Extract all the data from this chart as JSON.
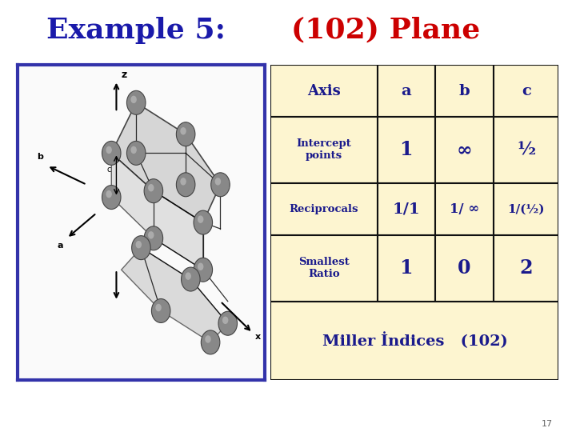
{
  "title_part1": "Example 5: ",
  "title_part2": "(102) Plane",
  "title_color1": "#1a1aaa",
  "title_color2": "#cc0000",
  "title_fontsize": 26,
  "bg_color": "#FFFFFF",
  "table_bg": "#fdf5d0",
  "table_border": "#111111",
  "table_text_color": "#1a1a8c",
  "intercept_values": [
    "1",
    "∞",
    "½"
  ],
  "reciprocal_values": [
    "1/1",
    "1/ ∞",
    "1/(½)"
  ],
  "ratio_values": [
    "1",
    "0",
    "2"
  ],
  "miller_label": "Miller İndices",
  "miller_value": "   (102)",
  "page_number": "17",
  "crystal_border": "#3333aa",
  "atom_color": "#888888",
  "atom_edge": "#444444"
}
